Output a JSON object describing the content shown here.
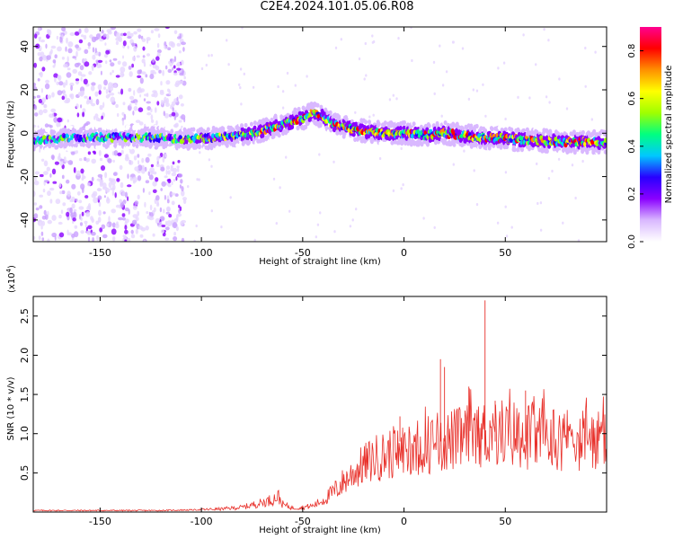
{
  "title": "C2E4.2024.101.05.06.R08",
  "chart_data": [
    {
      "type": "heatmap",
      "xlabel": "Height of straight line (km)",
      "ylabel": "Frequency (Hz)",
      "xlim": [
        -183,
        100
      ],
      "ylim": [
        -50,
        49
      ],
      "x_ticks": [
        -150,
        -100,
        -50,
        0,
        50
      ],
      "y_ticks": [
        -40,
        -20,
        0,
        20,
        40
      ],
      "ridge": {
        "x": [
          -183,
          -150,
          -120,
          -110,
          -90,
          -75,
          -60,
          -50,
          -45,
          -40,
          -35,
          -30,
          -20,
          -10,
          0,
          10,
          20,
          40,
          60,
          80,
          100
        ],
        "freq_hz": [
          -3,
          -2,
          -2,
          -3,
          -2,
          0,
          4,
          7,
          9,
          8,
          4,
          3,
          1,
          0,
          0,
          -1,
          0,
          -2,
          -3,
          -4,
          -4
        ]
      },
      "colorbar": {
        "label": "Normalized spectral amplitude",
        "range": [
          0,
          0.9
        ],
        "ticks": [
          0.0,
          0.2,
          0.4,
          0.6,
          0.8
        ],
        "colors": [
          "#ffffff",
          "#d9b8ff",
          "#8a00ff",
          "#2800ff",
          "#00c8ff",
          "#00ff80",
          "#a0ff00",
          "#ffff00",
          "#ff9000",
          "#ff0000",
          "#ff0090"
        ]
      }
    },
    {
      "type": "line",
      "xlabel": "Height of straight line (km)",
      "ylabel": "SNR (10 * v/v)",
      "y_multiplier_label": "(x10",
      "y_multiplier_exp": "4",
      "y_multiplier_close": ")",
      "xlim": [
        -183,
        100
      ],
      "ylim": [
        0,
        2.75
      ],
      "x_ticks": [
        -150,
        -100,
        -50,
        0,
        50
      ],
      "y_ticks": [
        0.5,
        1.0,
        1.5,
        2.0,
        2.5
      ],
      "series": [
        {
          "color": "#e8302a",
          "x": [
            -183,
            -150,
            -120,
            -100,
            -90,
            -80,
            -75,
            -70,
            -65,
            -62,
            -60,
            -55,
            -50,
            -45,
            -40,
            -35,
            -30,
            -25,
            -20,
            -15,
            -10,
            -5,
            0,
            10,
            20,
            30,
            40,
            50,
            60,
            70,
            80,
            90,
            100
          ],
          "values": [
            0.02,
            0.02,
            0.02,
            0.03,
            0.04,
            0.06,
            0.09,
            0.12,
            0.16,
            0.2,
            0.1,
            0.05,
            0.06,
            0.08,
            0.15,
            0.25,
            0.38,
            0.5,
            0.6,
            0.68,
            0.72,
            0.76,
            0.8,
            0.86,
            0.9,
            0.95,
            1.0,
            1.02,
            0.98,
            0.96,
            0.94,
            0.92,
            0.9
          ],
          "peaks": [
            {
              "x": 40,
              "value": 2.7
            },
            {
              "x": 18,
              "value": 1.95
            },
            {
              "x": 20,
              "value": 1.85
            },
            {
              "x": 32,
              "value": 1.6
            },
            {
              "x": -2,
              "value": 1.22
            },
            {
              "x": 60,
              "value": 1.55
            },
            {
              "x": 45,
              "value": 1.42
            }
          ]
        }
      ]
    }
  ]
}
